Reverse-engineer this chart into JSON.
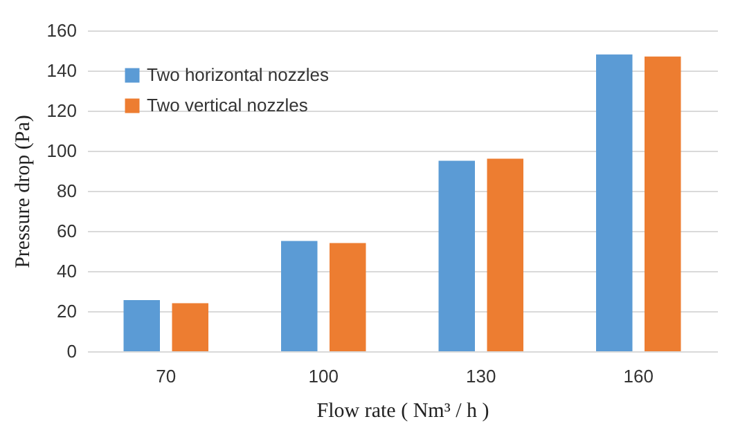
{
  "chart_data": {
    "type": "bar",
    "xlabel": "Flow rate ( Nm³ / h )",
    "ylabel": "Pressure drop (Pa)",
    "categories": [
      "70",
      "100",
      "130",
      "160"
    ],
    "series": [
      {
        "name": "Two horizontal nozzles",
        "color": "#5b9bd5",
        "values": [
          25.5,
          55,
          95,
          148
        ]
      },
      {
        "name": "Two vertical nozzles",
        "color": "#ed7d31",
        "values": [
          24,
          54,
          96,
          147
        ]
      }
    ],
    "ylim": [
      0,
      160
    ],
    "yticks": [
      0,
      20,
      40,
      60,
      80,
      100,
      120,
      140,
      160
    ],
    "grid": "y",
    "legend": "top left"
  }
}
